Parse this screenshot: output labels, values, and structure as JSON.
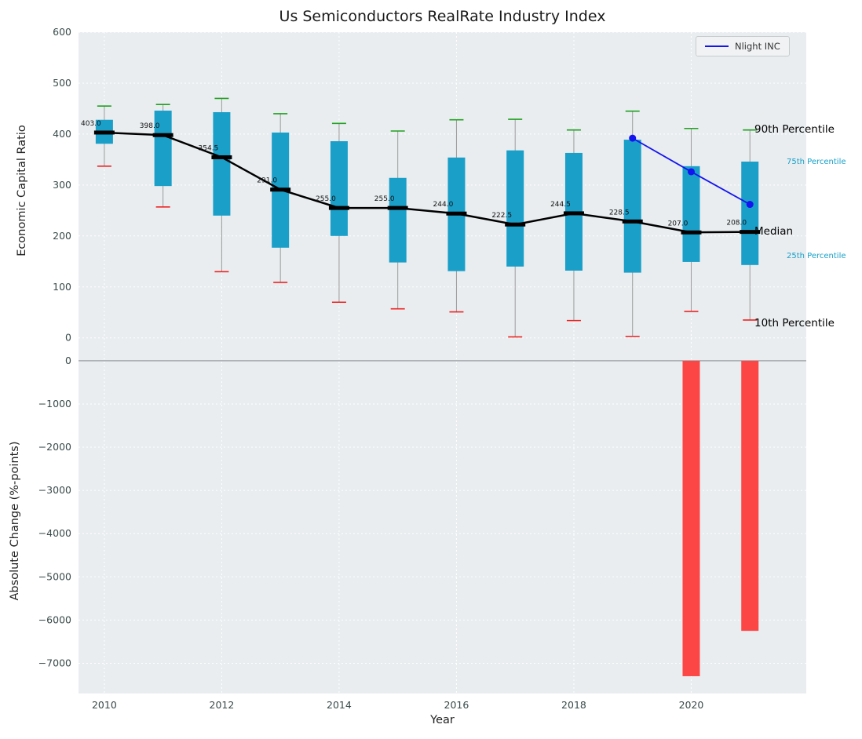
{
  "title": "Us Semiconductors RealRate Industry Index",
  "legend": {
    "label": "Nlight INC"
  },
  "annotations": {
    "p90": "90th Percentile",
    "p75": "75th Percentile",
    "median": "Median",
    "p25": "25th Percentile",
    "p10": "10th Percentile"
  },
  "colors": {
    "panel_bg": "#e9edf0",
    "grid": "#ffffff",
    "tick": "#3a4a4a",
    "box": "#1a9fc9",
    "whisker": "#9b9b9b",
    "cap_high": "#1fa01f",
    "cap_low": "#ee2222",
    "median": "#000000",
    "company": "#1414f0",
    "neg_bar": "#fc4545",
    "annotation_cyan": "#17a0c8"
  },
  "chart_data": {
    "type": "boxplot",
    "title": "Us Semiconductors RealRate Industry Index",
    "xlabel": "Year",
    "xticks": [
      2010,
      2012,
      2014,
      2016,
      2018,
      2020
    ],
    "top_panel": {
      "ylabel": "Economic Capital Ratio",
      "ylim": [
        -22,
        600
      ],
      "yticks": [
        0,
        100,
        200,
        300,
        400,
        500,
        600
      ],
      "years": [
        2010,
        2011,
        2012,
        2013,
        2014,
        2015,
        2016,
        2017,
        2018,
        2019,
        2020,
        2021
      ],
      "median": [
        403.0,
        398.0,
        354.5,
        291.0,
        255.0,
        255.0,
        244.0,
        222.5,
        244.5,
        228.5,
        207.0,
        208.0
      ],
      "q75": [
        428,
        446,
        443,
        403,
        386,
        314,
        354,
        368,
        363,
        389,
        337,
        346
      ],
      "q25": [
        381,
        298,
        240,
        177,
        200,
        148,
        131,
        140,
        132,
        128,
        149,
        143
      ],
      "p90": [
        455,
        458,
        470,
        440,
        421,
        406,
        428,
        429,
        408,
        445,
        411,
        408
      ],
      "p10": [
        337,
        257,
        130,
        109,
        70,
        57,
        51,
        2,
        34,
        3,
        52,
        35
      ],
      "company_series": {
        "name": "Nlight INC",
        "years": [
          2019,
          2020,
          2021
        ],
        "values": [
          392,
          326,
          262
        ]
      }
    },
    "bottom_panel": {
      "ylabel": "Absolute Change (%-points)",
      "ylim": [
        -7700,
        270
      ],
      "yticks": [
        0,
        -1000,
        -2000,
        -3000,
        -4000,
        -5000,
        -6000,
        -7000
      ],
      "bars": [
        {
          "year": 2020,
          "value": -7300
        },
        {
          "year": 2021,
          "value": -6250
        }
      ]
    }
  }
}
